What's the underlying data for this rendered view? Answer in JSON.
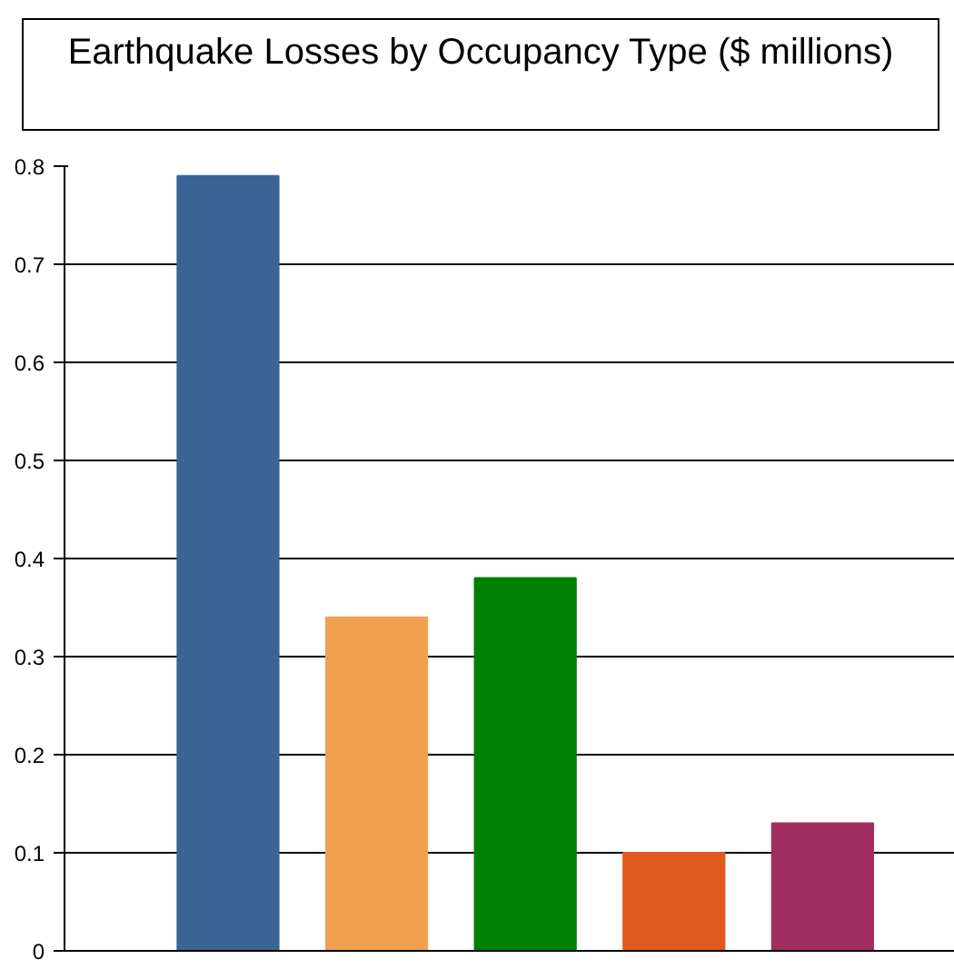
{
  "chart_data": {
    "type": "bar",
    "title": "Earthquake Losses by Occupancy Type ($ millions)",
    "categories": [
      null,
      null,
      null,
      null,
      null
    ],
    "values": [
      0.79,
      0.34,
      0.38,
      0.1,
      0.13
    ],
    "colors": [
      "#3a6496",
      "#f0a150",
      "#008000",
      "#e05a20",
      "#a02f60"
    ],
    "ylim": [
      0,
      0.8
    ],
    "yticks": [
      0,
      0.1,
      0.2,
      0.3,
      0.4,
      0.5,
      0.6,
      0.7,
      0.8
    ],
    "grid": "y"
  }
}
